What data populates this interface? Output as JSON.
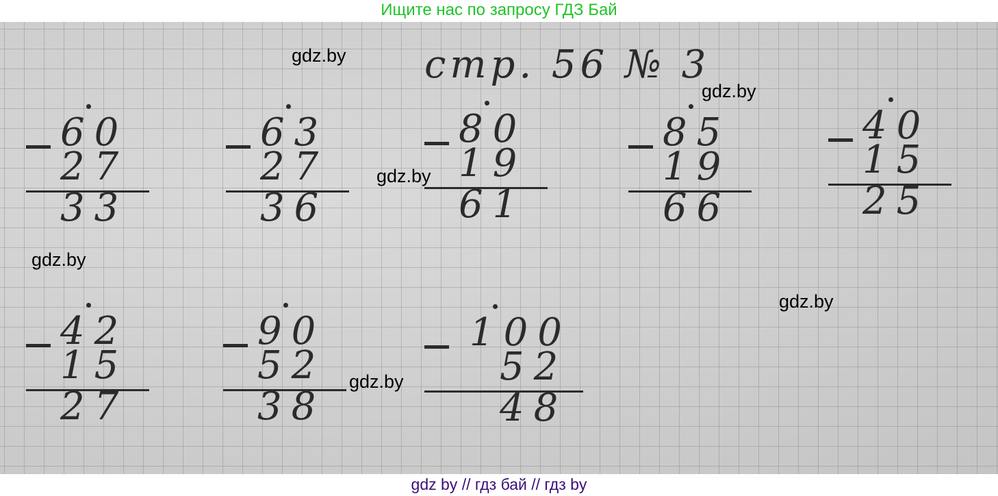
{
  "header_banner": "Ищите нас по запросу ГДЗ Бай",
  "footer_banner": "gdz by  //  гдз бай  //  гдз by",
  "page_title": "стр. 56 № 3",
  "problems": [
    {
      "minuend": "60",
      "subtrahend": "27",
      "result": "33"
    },
    {
      "minuend": "63",
      "subtrahend": "27",
      "result": "36"
    },
    {
      "minuend": "80",
      "subtrahend": "19",
      "result": "61"
    },
    {
      "minuend": "85",
      "subtrahend": "19",
      "result": "66"
    },
    {
      "minuend": "40",
      "subtrahend": "15",
      "result": "25"
    },
    {
      "minuend": "42",
      "subtrahend": "15",
      "result": "27"
    },
    {
      "minuend": "90",
      "subtrahend": "52",
      "result": "38"
    },
    {
      "minuend": "100",
      "subtrahend": "52",
      "result": "48"
    }
  ],
  "watermarks": [
    "gdz.by",
    "gdz.by",
    "gdz.by",
    "gdz.by",
    "gdz.by",
    "gdz.by",
    "gdz.by"
  ],
  "colors": {
    "header": "#22c32a",
    "footer": "#3b0f7a"
  }
}
